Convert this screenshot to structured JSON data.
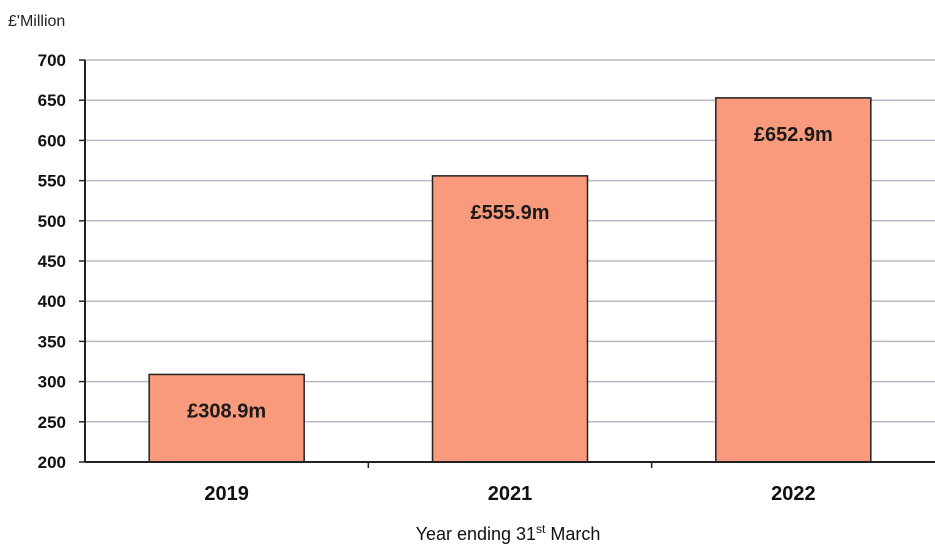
{
  "chart_data": {
    "type": "bar",
    "categories": [
      "2019",
      "2021",
      "2022"
    ],
    "values": [
      308.9,
      555.9,
      652.9
    ],
    "data_labels": [
      "£308.9m",
      "£555.9m",
      "£652.9m"
    ],
    "ylabel": "£'Million",
    "xlabel_main": "Year ending 31",
    "xlabel_sup": "st",
    "xlabel_tail": " March",
    "ylim": [
      200,
      700
    ],
    "yticks": [
      200,
      250,
      300,
      350,
      400,
      450,
      500,
      550,
      600,
      650,
      700
    ],
    "grid": true,
    "bar_color": "#fa9a7d",
    "bar_edge": "#222222",
    "grid_color": "#b8b8c8"
  }
}
